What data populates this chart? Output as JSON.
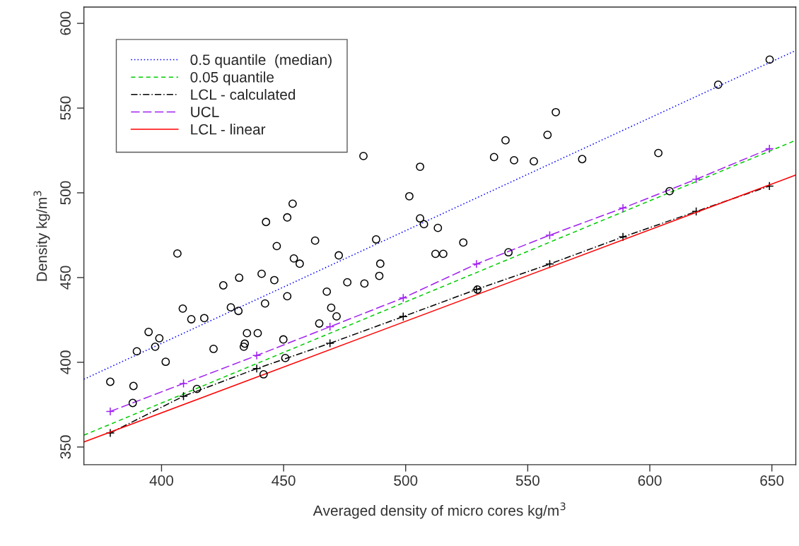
{
  "chart_data": {
    "type": "scatter",
    "xlabel": "Averaged density of micro cores kg/m$^{3}$",
    "ylabel": "Density kg/m$^{3}$",
    "xlim": [
      368.2,
      659.8
    ],
    "ylim": [
      339.6,
      609.6
    ],
    "xticks": [
      400,
      450,
      500,
      550,
      600,
      650
    ],
    "yticks": [
      350,
      400,
      450,
      500,
      550,
      600
    ],
    "grid": false,
    "legend": "top left",
    "series": [
      {
        "color": "#000000",
        "marker": "circle",
        "x": [
          482.7,
          505.9,
          501.5,
          453.7,
          451.5,
          442.8,
          505.9,
          507.5,
          513.2,
          462.9,
          487.9,
          447.2,
          406.5,
          472.6,
          512.2,
          515.4,
          454.2,
          456.6,
          489.6,
          628.0,
          561.5,
          540.9,
          558.1,
          536.2,
          544.4,
          552.5,
          572.3,
          603.5,
          649.1,
          523.6,
          542.1,
          608.1,
          431.8,
          441.0,
          446.2,
          425.3,
          476.1,
          483.1,
          489.2,
          467.7,
          451.5,
          442.4,
          408.7,
          428.4,
          431.5,
          412.2,
          417.5,
          469.5,
          471.7,
          464.6,
          394.7,
          399.1,
          397.4,
          389.9,
          435.0,
          439.4,
          421.3,
          434.1,
          433.7,
          449.9,
          401.7,
          450.7,
          441.8,
          379.0,
          388.5,
          388.2,
          414.5,
          529.4
        ],
        "values": [
          521.7,
          515.4,
          498.0,
          493.6,
          485.5,
          482.8,
          484.9,
          481.5,
          479.3,
          471.8,
          472.5,
          468.6,
          464.2,
          463.1,
          464.0,
          464.0,
          461.3,
          458.2,
          458.2,
          563.8,
          547.6,
          531.0,
          534.2,
          521.1,
          519.2,
          518.6,
          519.9,
          523.5,
          578.6,
          470.7,
          464.9,
          501.0,
          449.9,
          452.2,
          448.5,
          445.4,
          447.2,
          446.5,
          451.0,
          441.7,
          439.0,
          434.7,
          431.7,
          432.4,
          430.3,
          425.4,
          426.1,
          432.2,
          427.1,
          422.9,
          417.9,
          414.2,
          409.2,
          406.5,
          417.2,
          417.2,
          407.9,
          411.0,
          409.2,
          413.5,
          400.3,
          402.5,
          392.9,
          388.5,
          386.0,
          376.0,
          384.3,
          442.9
        ]
      },
      {
        "type": "line",
        "name": "0.5 quantile  (median)",
        "color": "#0000ff",
        "line_style": "dotted",
        "marker": "none",
        "x": [
          368.2,
          659.8
        ],
        "values": [
          390,
          584
        ]
      },
      {
        "type": "line",
        "name": "0.05 quantile",
        "color": "#00cd00",
        "line_style": "dashed",
        "marker": "none",
        "x": [
          368.2,
          659.8
        ],
        "values": [
          357,
          531
        ]
      },
      {
        "type": "line",
        "name": "LCL - calculated",
        "color": "#000000",
        "line_style": "dashdot",
        "marker": "cross",
        "x": [
          379,
          409,
          439,
          469,
          499,
          529,
          559,
          589,
          619,
          649
        ],
        "values": [
          358.3,
          380,
          396.3,
          411.2,
          427,
          443,
          458,
          474,
          489,
          504
        ]
      },
      {
        "type": "line",
        "name": "UCL",
        "color": "#a020f0",
        "line_style": "longdash",
        "marker": "cross",
        "x": [
          379,
          409,
          439,
          469,
          499,
          529,
          559,
          589,
          619,
          649
        ],
        "values": [
          371,
          387.5,
          404,
          421,
          438,
          458,
          475,
          491,
          508,
          526
        ]
      },
      {
        "type": "line",
        "name": "LCL - linear",
        "color": "#ff0000",
        "line_style": "solid",
        "marker": "none",
        "x": [
          368.2,
          659.8
        ],
        "values": [
          353,
          510.5
        ]
      }
    ]
  }
}
